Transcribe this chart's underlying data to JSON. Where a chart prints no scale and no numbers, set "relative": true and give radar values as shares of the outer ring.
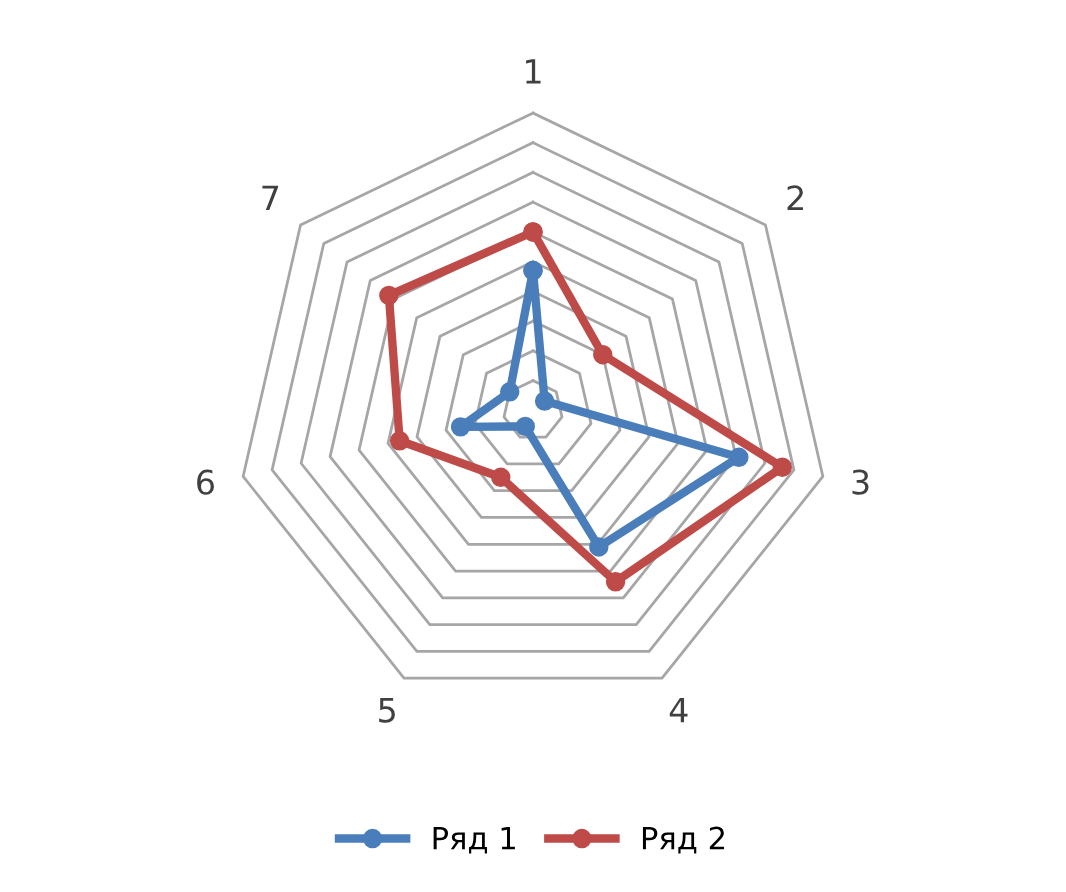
{
  "chart_data": {
    "type": "radar",
    "relative": true,
    "categories": [
      "1",
      "2",
      "3",
      "4",
      "5",
      "6",
      "7"
    ],
    "series": [
      {
        "name": "Ряд 1",
        "color": "#4a7ebb",
        "values": [
          0.47,
          0.05,
          0.71,
          0.51,
          0.06,
          0.25,
          0.1
        ]
      },
      {
        "name": "Ряд 2",
        "color": "#be4b48",
        "values": [
          0.6,
          0.3,
          0.86,
          0.64,
          0.25,
          0.46,
          0.62
        ]
      }
    ],
    "grid": true,
    "legend": "bottom",
    "marker": "circle",
    "line_style": "solid"
  }
}
